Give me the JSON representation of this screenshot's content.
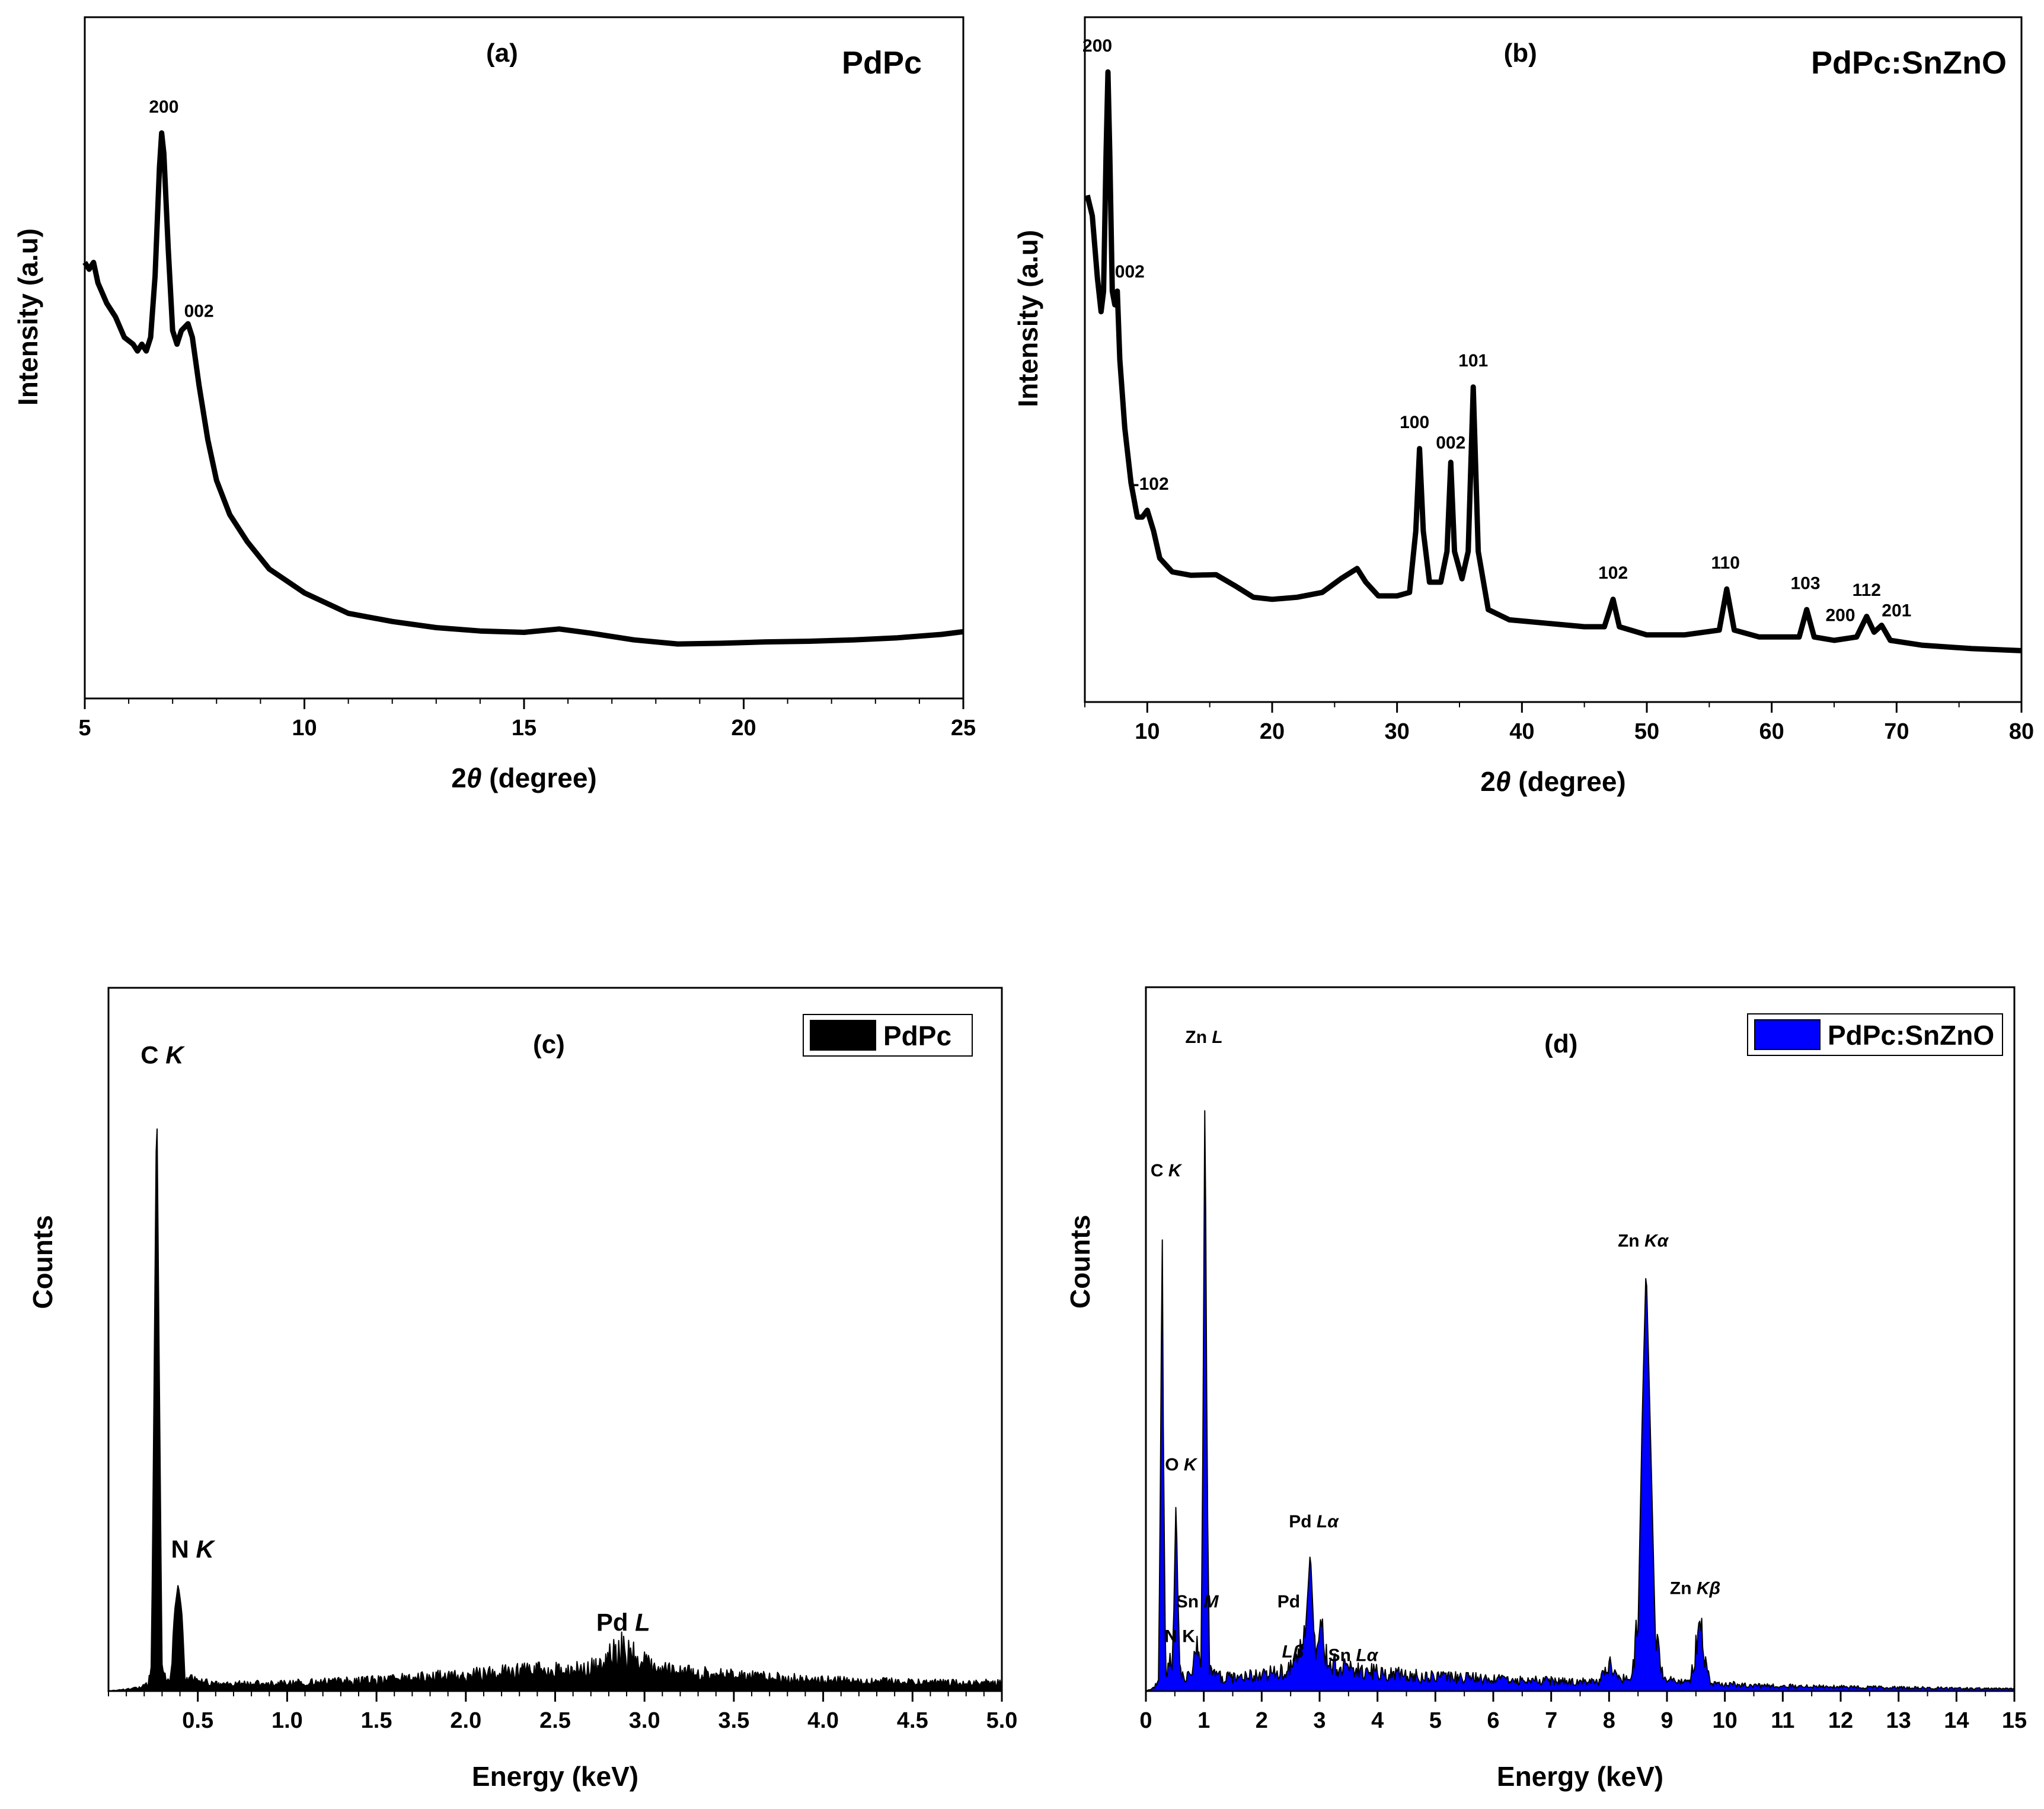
{
  "colors": {
    "line": "#000000",
    "edsD": "#0000ff",
    "axis": "#000000"
  },
  "chart_data": [
    {
      "id": "a",
      "type": "line",
      "panel_label": "(a)",
      "title": "PdPc",
      "xlabel_prefix": "2",
      "xlabel_symbol": "θ",
      "xlabel_suffix": " (degree)",
      "ylabel": "Intensity (a.u)",
      "xlim": [
        5,
        25
      ],
      "ylim": [
        0,
        100
      ],
      "xticks": [
        5,
        10,
        15,
        20,
        25
      ],
      "xtick_labels": [
        "5",
        "10",
        "15",
        "20",
        "25"
      ],
      "points": [
        [
          5.0,
          64
        ],
        [
          5.1,
          63
        ],
        [
          5.2,
          64
        ],
        [
          5.3,
          61
        ],
        [
          5.5,
          58
        ],
        [
          5.7,
          56
        ],
        [
          5.9,
          53
        ],
        [
          6.1,
          52
        ],
        [
          6.2,
          51
        ],
        [
          6.3,
          52
        ],
        [
          6.4,
          51
        ],
        [
          6.5,
          53
        ],
        [
          6.6,
          62
        ],
        [
          6.7,
          78
        ],
        [
          6.75,
          83
        ],
        [
          6.8,
          80
        ],
        [
          6.9,
          66
        ],
        [
          7.0,
          54
        ],
        [
          7.1,
          52
        ],
        [
          7.2,
          54
        ],
        [
          7.35,
          55
        ],
        [
          7.45,
          53
        ],
        [
          7.6,
          46
        ],
        [
          7.8,
          38
        ],
        [
          8.0,
          32
        ],
        [
          8.3,
          27
        ],
        [
          8.7,
          23
        ],
        [
          9.2,
          19
        ],
        [
          10.0,
          15.5
        ],
        [
          11.0,
          12.5
        ],
        [
          12.0,
          11.3
        ],
        [
          13.0,
          10.4
        ],
        [
          14.0,
          9.9
        ],
        [
          15.0,
          9.7
        ],
        [
          15.8,
          10.2
        ],
        [
          16.5,
          9.6
        ],
        [
          17.5,
          8.6
        ],
        [
          18.5,
          8.0
        ],
        [
          19.5,
          8.1
        ],
        [
          20.5,
          8.3
        ],
        [
          21.5,
          8.4
        ],
        [
          22.5,
          8.6
        ],
        [
          23.5,
          8.9
        ],
        [
          24.5,
          9.4
        ],
        [
          25.0,
          9.8
        ]
      ],
      "annotations": [
        {
          "text": "200",
          "x": 6.8,
          "y": 86
        },
        {
          "text": "002",
          "x": 7.6,
          "y": 56
        }
      ]
    },
    {
      "id": "b",
      "type": "line",
      "panel_label": "(b)",
      "title": "PdPc:SnZnO",
      "xlabel_prefix": "2",
      "xlabel_symbol": "θ",
      "xlabel_suffix": " (degree)",
      "ylabel": "Intensity (a.u)",
      "xlim": [
        5,
        80
      ],
      "ylim": [
        0,
        100
      ],
      "xticks": [
        10,
        20,
        30,
        40,
        50,
        60,
        70,
        80
      ],
      "xtick_labels": [
        "10",
        "20",
        "30",
        "40",
        "50",
        "60",
        "70",
        "80"
      ],
      "points": [
        [
          5.2,
          74
        ],
        [
          5.6,
          71
        ],
        [
          6.0,
          62
        ],
        [
          6.3,
          57
        ],
        [
          6.5,
          60
        ],
        [
          6.7,
          80
        ],
        [
          6.85,
          92
        ],
        [
          7.0,
          80
        ],
        [
          7.2,
          60
        ],
        [
          7.4,
          58
        ],
        [
          7.6,
          60
        ],
        [
          7.8,
          50
        ],
        [
          8.2,
          40
        ],
        [
          8.7,
          32
        ],
        [
          9.2,
          27
        ],
        [
          9.6,
          27
        ],
        [
          10.0,
          28
        ],
        [
          10.5,
          25
        ],
        [
          11.0,
          21
        ],
        [
          12.0,
          19
        ],
        [
          13.5,
          18.5
        ],
        [
          15.5,
          18.6
        ],
        [
          17.0,
          17
        ],
        [
          18.5,
          15.3
        ],
        [
          20.0,
          15.0
        ],
        [
          22.0,
          15.3
        ],
        [
          24.0,
          16.0
        ],
        [
          25.5,
          18
        ],
        [
          26.8,
          19.5
        ],
        [
          27.5,
          17.5
        ],
        [
          28.5,
          15.5
        ],
        [
          30.0,
          15.5
        ],
        [
          31.0,
          16
        ],
        [
          31.5,
          25
        ],
        [
          31.8,
          37
        ],
        [
          32.1,
          25
        ],
        [
          32.6,
          17.5
        ],
        [
          33.5,
          17.5
        ],
        [
          34.0,
          22
        ],
        [
          34.3,
          35
        ],
        [
          34.6,
          22
        ],
        [
          35.2,
          18
        ],
        [
          35.7,
          22
        ],
        [
          36.1,
          46
        ],
        [
          36.5,
          22
        ],
        [
          37.3,
          13.5
        ],
        [
          39.0,
          12.0
        ],
        [
          42.0,
          11.5
        ],
        [
          45.0,
          11.0
        ],
        [
          46.6,
          11
        ],
        [
          47.3,
          15
        ],
        [
          47.8,
          11
        ],
        [
          50.0,
          9.8
        ],
        [
          53.0,
          9.8
        ],
        [
          55.8,
          10.5
        ],
        [
          56.4,
          16.5
        ],
        [
          57.0,
          10.5
        ],
        [
          59.0,
          9.5
        ],
        [
          62.2,
          9.5
        ],
        [
          62.8,
          13.5
        ],
        [
          63.4,
          9.5
        ],
        [
          65.0,
          9.0
        ],
        [
          66.8,
          9.5
        ],
        [
          67.6,
          12.5
        ],
        [
          68.2,
          10.2
        ],
        [
          68.8,
          11.2
        ],
        [
          69.5,
          9
        ],
        [
          72.0,
          8.3
        ],
        [
          76.0,
          7.8
        ],
        [
          80.0,
          7.5
        ]
      ],
      "annotations": [
        {
          "text": "200",
          "x": 6.0,
          "y": 95
        },
        {
          "text": "002",
          "x": 8.6,
          "y": 62
        },
        {
          "text": "-102",
          "x": 10.3,
          "y": 31
        },
        {
          "text": "100",
          "x": 31.4,
          "y": 40
        },
        {
          "text": "002",
          "x": 34.3,
          "y": 37
        },
        {
          "text": "101",
          "x": 36.1,
          "y": 49
        },
        {
          "text": "102",
          "x": 47.3,
          "y": 18
        },
        {
          "text": "110",
          "x": 56.3,
          "y": 19.5
        },
        {
          "text": "103",
          "x": 62.7,
          "y": 16.5
        },
        {
          "text": "200",
          "x": 65.5,
          "y": 11.8
        },
        {
          "text": "112",
          "x": 67.6,
          "y": 15.5
        },
        {
          "text": "201",
          "x": 70.0,
          "y": 12.5
        }
      ]
    },
    {
      "id": "c",
      "type": "area",
      "panel_label": "(c)",
      "legend": "PdPc",
      "legend_position": "top-right",
      "xlabel": "Energy (keV)",
      "ylabel": "Counts",
      "xlim": [
        0,
        5.0
      ],
      "ylim": [
        0,
        100
      ],
      "xticks": [
        0.5,
        1.0,
        1.5,
        2.0,
        2.5,
        3.0,
        3.5,
        4.0,
        4.5,
        5.0
      ],
      "xtick_labels": [
        "0.5",
        "1.0",
        "1.5",
        "2.0",
        "2.5",
        "3.0",
        "3.5",
        "4.0",
        "4.5",
        "5.0"
      ],
      "points": [
        [
          0.0,
          0
        ],
        [
          0.18,
          0.5
        ],
        [
          0.22,
          1
        ],
        [
          0.24,
          3
        ],
        [
          0.255,
          45
        ],
        [
          0.27,
          91
        ],
        [
          0.285,
          45
        ],
        [
          0.3,
          3
        ],
        [
          0.33,
          1
        ],
        [
          0.35,
          3
        ],
        [
          0.37,
          12
        ],
        [
          0.39,
          16
        ],
        [
          0.41,
          12
        ],
        [
          0.43,
          2
        ],
        [
          0.6,
          1
        ],
        [
          1.0,
          1.2
        ],
        [
          1.5,
          1.6
        ],
        [
          2.0,
          2.4
        ],
        [
          2.3,
          3.0
        ],
        [
          2.6,
          3.0
        ],
        [
          2.75,
          3.6
        ],
        [
          2.82,
          5.5
        ],
        [
          2.88,
          6.2
        ],
        [
          2.95,
          5
        ],
        [
          3.05,
          3.2
        ],
        [
          3.4,
          2.4
        ],
        [
          4.0,
          1.6
        ],
        [
          4.5,
          1.3
        ],
        [
          5.0,
          1.2
        ]
      ],
      "annotations": [
        {
          "text": "C ",
          "italic": "K",
          "x": 0.18,
          "y": 94
        },
        {
          "text": "N ",
          "italic": "K",
          "x": 0.35,
          "y": 20
        },
        {
          "text": "Pd ",
          "italic": "L",
          "x": 2.73,
          "y": 9
        }
      ]
    },
    {
      "id": "d",
      "type": "area",
      "panel_label": "(d)",
      "legend": "PdPc:SnZnO",
      "legend_position": "top-right",
      "xlabel": "Energy (keV)",
      "ylabel": "Counts",
      "xlim": [
        0,
        15
      ],
      "ylim": [
        0,
        100
      ],
      "xticks": [
        0,
        1,
        2,
        3,
        4,
        5,
        6,
        7,
        8,
        9,
        10,
        11,
        12,
        13,
        14,
        15
      ],
      "xtick_labels": [
        "0",
        "1",
        "2",
        "3",
        "4",
        "5",
        "6",
        "7",
        "8",
        "9",
        "10",
        "11",
        "12",
        "13",
        "14",
        "15"
      ],
      "points": [
        [
          0.0,
          0
        ],
        [
          0.15,
          0.5
        ],
        [
          0.22,
          2
        ],
        [
          0.26,
          40
        ],
        [
          0.28,
          73
        ],
        [
          0.3,
          40
        ],
        [
          0.34,
          2
        ],
        [
          0.38,
          3
        ],
        [
          0.4,
          6
        ],
        [
          0.43,
          3
        ],
        [
          0.47,
          6
        ],
        [
          0.52,
          29
        ],
        [
          0.57,
          6
        ],
        [
          0.62,
          2
        ],
        [
          0.8,
          3
        ],
        [
          0.9,
          7
        ],
        [
          0.95,
          3
        ],
        [
          0.98,
          30
        ],
        [
          1.02,
          92
        ],
        [
          1.06,
          30
        ],
        [
          1.1,
          3
        ],
        [
          1.3,
          2
        ],
        [
          1.8,
          2.2
        ],
        [
          2.3,
          2.8
        ],
        [
          2.6,
          3.8
        ],
        [
          2.75,
          8
        ],
        [
          2.84,
          21
        ],
        [
          2.9,
          9
        ],
        [
          2.97,
          6
        ],
        [
          3.02,
          11
        ],
        [
          3.08,
          5
        ],
        [
          3.4,
          3.5
        ],
        [
          3.6,
          3.4
        ],
        [
          4.5,
          2.3
        ],
        [
          6.0,
          1.8
        ],
        [
          7.8,
          1.3
        ],
        [
          7.95,
          3
        ],
        [
          8.05,
          4.2
        ],
        [
          8.15,
          2
        ],
        [
          8.35,
          1.5
        ],
        [
          8.5,
          9
        ],
        [
          8.57,
          40
        ],
        [
          8.64,
          64
        ],
        [
          8.71,
          40
        ],
        [
          8.8,
          8
        ],
        [
          8.95,
          1.5
        ],
        [
          9.4,
          1.5
        ],
        [
          9.5,
          6
        ],
        [
          9.56,
          11
        ],
        [
          9.62,
          6
        ],
        [
          9.75,
          1.2
        ],
        [
          10.5,
          0.8
        ],
        [
          12.0,
          0.6
        ],
        [
          15.0,
          0.3
        ]
      ],
      "annotations": [
        {
          "text": "Zn ",
          "italic": "L",
          "x": 0.68,
          "y": 97
        },
        {
          "text": "C ",
          "italic": "K",
          "x": 0.08,
          "y": 77
        },
        {
          "text": "O ",
          "italic": "K",
          "x": 0.33,
          "y": 33
        },
        {
          "text": "Sn ",
          "italic": "M",
          "x": 0.52,
          "y": 12.5
        },
        {
          "text": "N  K",
          "italic": "",
          "x": 0.32,
          "y": 7.3
        },
        {
          "text": "Pd ",
          "italic": "Lα",
          "x": 2.47,
          "y": 24.5
        },
        {
          "text": "Pd",
          "italic": "",
          "x": 2.27,
          "y": 12.5
        },
        {
          "text": "",
          "italic": "Lβ",
          "x": 2.35,
          "y": 5
        },
        {
          "text": "Sn ",
          "italic": "Lα",
          "x": 3.15,
          "y": 4.5
        },
        {
          "text": "Zn ",
          "italic": "Kα",
          "x": 8.15,
          "y": 66.5
        },
        {
          "text": "Zn ",
          "italic": "Kβ",
          "x": 9.05,
          "y": 14.5
        }
      ]
    }
  ]
}
